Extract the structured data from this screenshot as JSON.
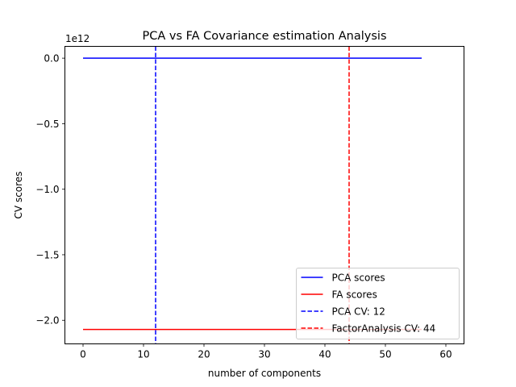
{
  "chart_data": {
    "type": "line",
    "title": "PCA vs FA Covariance estimation Analysis",
    "xlabel": "number of components",
    "ylabel": "CV scores",
    "y_offset_label": "1e12",
    "xlim": [
      -3,
      63
    ],
    "ylim": [
      -2.18,
      0.09
    ],
    "xticks": [
      0,
      10,
      20,
      30,
      40,
      50,
      60
    ],
    "xtick_labels": [
      "0",
      "10",
      "20",
      "30",
      "40",
      "50",
      "60"
    ],
    "yticks": [
      0.0,
      -0.5,
      -1.0,
      -1.5,
      -2.0
    ],
    "ytick_labels": [
      "0.0",
      "−0.5",
      "−1.0",
      "−1.5",
      "−2.0"
    ],
    "grid": false,
    "legend_position": "lower-right",
    "series": [
      {
        "name": "PCA scores",
        "color": "#0000ff",
        "style": "solid",
        "x": [
          0,
          56
        ],
        "y": [
          0.0,
          0.0
        ]
      },
      {
        "name": "FA scores",
        "color": "#ff0000",
        "style": "solid",
        "x": [
          0,
          56
        ],
        "y": [
          -2.07,
          -2.07
        ]
      }
    ],
    "vlines": [
      {
        "name": "PCA CV: 12",
        "color": "#0000ff",
        "style": "dashed",
        "x": 12
      },
      {
        "name": "FactorAnalysis CV: 44",
        "color": "#ff0000",
        "style": "dashed",
        "x": 44
      }
    ]
  }
}
